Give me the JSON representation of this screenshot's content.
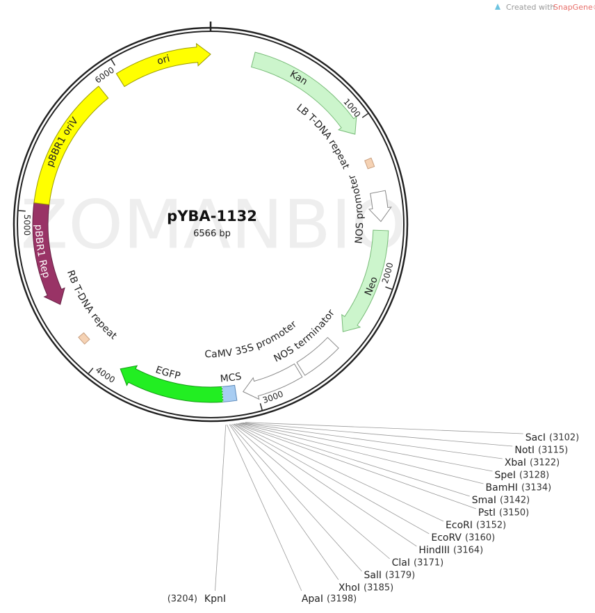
{
  "credit": {
    "prefix": "Created with",
    "brand": "SnapGene®"
  },
  "watermark": "ZOMANBIO",
  "plasmid": {
    "name": "pYBA-1132",
    "length": "6566 bp"
  },
  "ticks": [
    1000,
    2000,
    3000,
    4000,
    5000,
    6000
  ],
  "features": [
    {
      "label": "ori"
    },
    {
      "label": "Kan"
    },
    {
      "label": "LB T-DNA repeat"
    },
    {
      "label": "NOS promoter"
    },
    {
      "label": "Neo"
    },
    {
      "label": "NOS terminator"
    },
    {
      "label": "CaMV 35S promoter"
    },
    {
      "label": "MCS"
    },
    {
      "label": "EGFP"
    },
    {
      "label": "RB T-DNA repeat"
    },
    {
      "label": "pBBR1 Rep"
    },
    {
      "label": "pBBR1 oriV"
    }
  ],
  "sites": [
    {
      "name": "SacI",
      "position": {
        "value": 3102,
        "label": "(3102)"
      }
    },
    {
      "name": "NotI",
      "position": {
        "value": 3115,
        "label": "(3115)"
      }
    },
    {
      "name": "XbaI",
      "position": {
        "value": 3122,
        "label": "(3122)"
      }
    },
    {
      "name": "SpeI",
      "position": {
        "value": 3128,
        "label": "(3128)"
      }
    },
    {
      "name": "BamHI",
      "position": {
        "value": 3134,
        "label": "(3134)"
      }
    },
    {
      "name": "SmaI",
      "position": {
        "value": 3142,
        "label": "(3142)"
      }
    },
    {
      "name": "PstI",
      "position": {
        "value": 3150,
        "label": "(3150)"
      }
    },
    {
      "name": "EcoRI",
      "position": {
        "value": 3152,
        "label": "(3152)"
      }
    },
    {
      "name": "EcoRV",
      "position": {
        "value": 3160,
        "label": "(3160)"
      }
    },
    {
      "name": "HindIII",
      "position": {
        "value": 3164,
        "label": "(3164)"
      }
    },
    {
      "name": "ClaI",
      "position": {
        "value": 3171,
        "label": "(3171)"
      }
    },
    {
      "name": "SalI",
      "position": {
        "value": 3179,
        "label": "(3179)"
      }
    },
    {
      "name": "XhoI",
      "position": {
        "value": 3185,
        "label": "(3185)"
      }
    },
    {
      "name": "ApaI",
      "position": {
        "value": 3198,
        "label": "(3198)"
      }
    },
    {
      "name": "KpnI",
      "position": {
        "value": 3204,
        "label": "(3204)"
      }
    }
  ]
}
